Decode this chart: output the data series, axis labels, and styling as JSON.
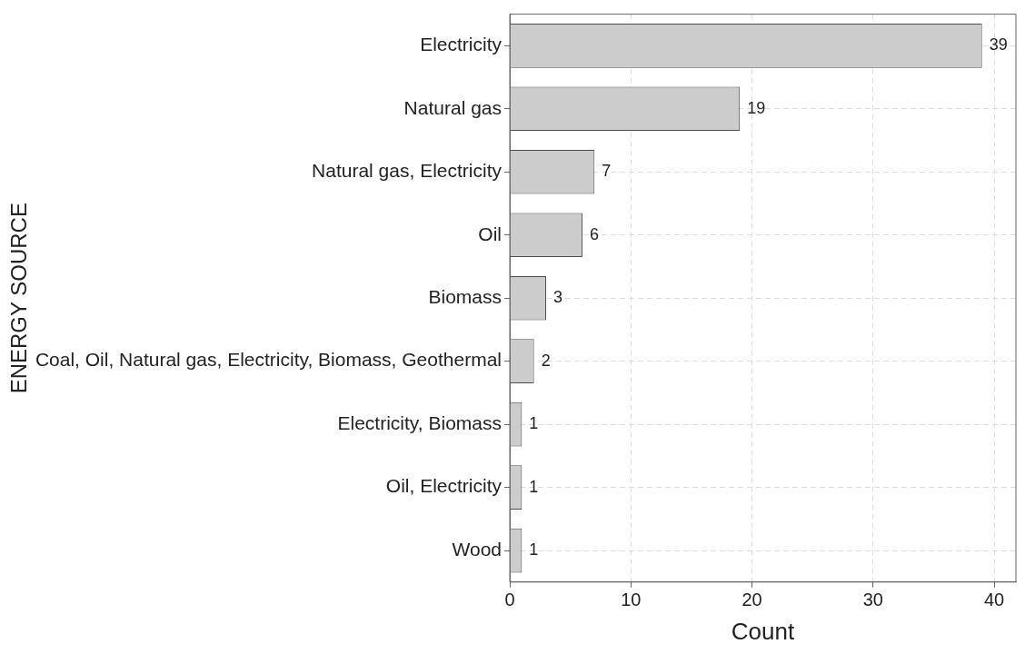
{
  "chart_data": {
    "type": "bar",
    "orientation": "horizontal",
    "categories": [
      "Electricity",
      "Natural gas",
      "Natural gas, Electricity",
      "Oil",
      "Biomass",
      "Coal, Oil, Natural gas, Electricity, Biomass, Geothermal",
      "Electricity, Biomass",
      "Oil, Electricity",
      "Wood"
    ],
    "values": [
      39,
      19,
      7,
      6,
      3,
      2,
      1,
      1,
      1
    ],
    "color": "#cccccc",
    "xlabel": "Count",
    "ylabel": "ENERGY SOURCE",
    "xlim": [
      0,
      41.8
    ],
    "xticks": [
      0,
      10,
      20,
      30,
      40
    ],
    "grid": true,
    "legend": false,
    "data_labels": true
  }
}
